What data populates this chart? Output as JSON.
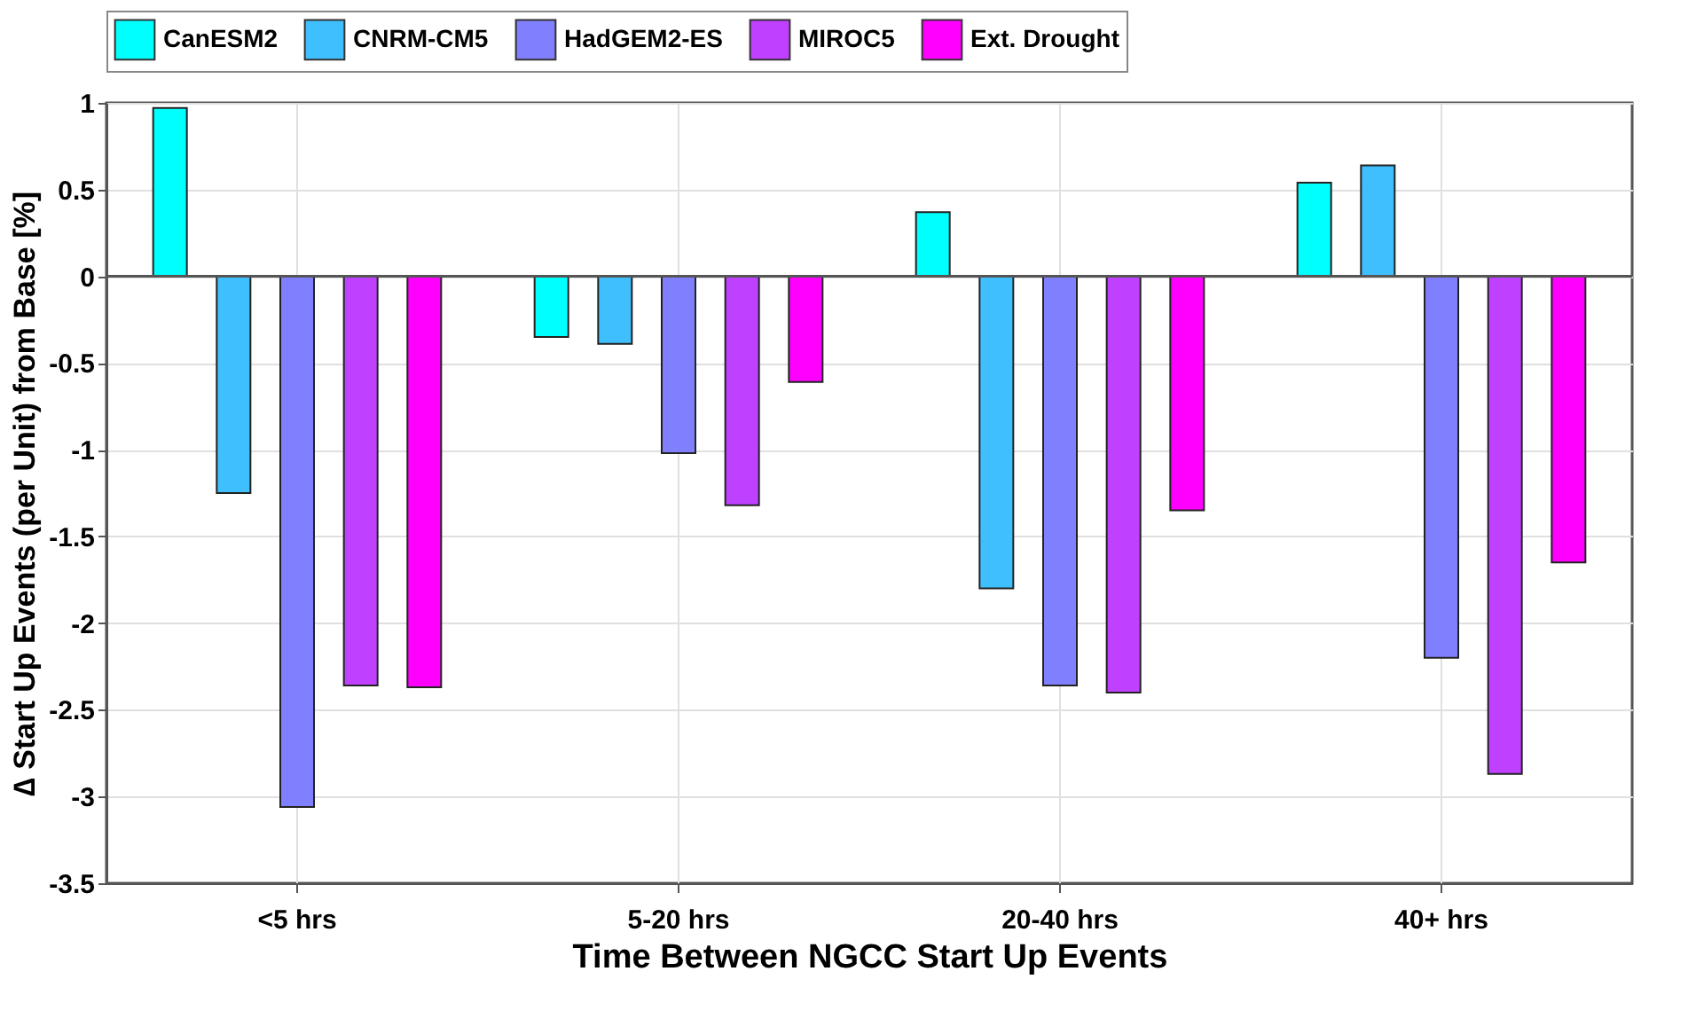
{
  "chart_data": {
    "type": "bar",
    "xlabel": "Time Between NGCC Start Up Events",
    "ylabel": "∆ Start Up Events (per Unit) from Base [%]",
    "categories": [
      "<5 hrs",
      "5-20 hrs",
      "20-40 hrs",
      "40+ hrs"
    ],
    "series": [
      {
        "name": "CanESM2",
        "color": "#00ffff",
        "values": [
          0.97,
          -0.35,
          0.37,
          0.54
        ]
      },
      {
        "name": "CNRM-CM5",
        "color": "#40bfff",
        "values": [
          -1.25,
          -0.39,
          -1.8,
          0.64
        ]
      },
      {
        "name": "HadGEM2-ES",
        "color": "#8080ff",
        "values": [
          -3.06,
          -1.02,
          -2.36,
          -2.2
        ]
      },
      {
        "name": "MIROC5",
        "color": "#bf40ff",
        "values": [
          -2.36,
          -1.32,
          -2.4,
          -2.87
        ]
      },
      {
        "name": "Ext. Drought",
        "color": "#ff00ff",
        "values": [
          -2.37,
          -0.61,
          -1.35,
          -1.65
        ]
      }
    ],
    "ylim": [
      -3.5,
      1
    ],
    "yticks": [
      -3.5,
      -3,
      -2.5,
      -2,
      -1.5,
      -1,
      -0.5,
      0,
      0.5,
      1
    ],
    "grid": true,
    "legend": "top"
  }
}
